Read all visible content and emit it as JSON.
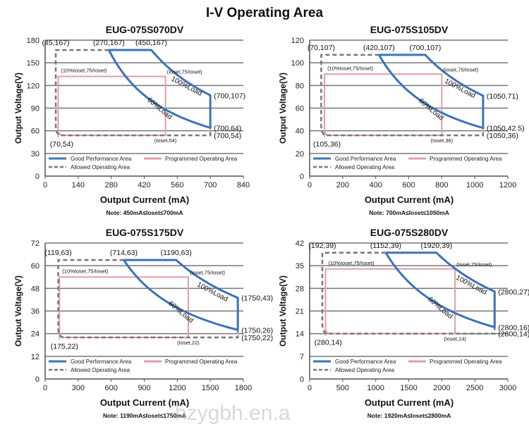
{
  "title": "I-V Operating Area",
  "watermark": "hzygbh.en.a",
  "legend": {
    "good": "Good Performance Area",
    "programmed": "Programmed Operating Area",
    "allowed": "Allowed Operating Area"
  },
  "colors": {
    "good": "#3b73b9",
    "programmed": "#e0a0a4",
    "allowed": "#777777",
    "grid": "#777777"
  },
  "chart_data": [
    {
      "type": "line",
      "title": "EUG-075S070DV",
      "xlabel": "Output Current (mA)",
      "ylabel": "Output Voltage(V)",
      "xlim": [
        0,
        840
      ],
      "ylim": [
        0,
        180
      ],
      "xticks": [
        0,
        140,
        280,
        420,
        560,
        700,
        840
      ],
      "yticks": [
        0,
        30,
        60,
        90,
        120,
        150,
        180
      ],
      "note": "Note:  450mA≤Ioset≤700mA",
      "good": {
        "a": 270,
        "b": 450,
        "vmax": 167,
        "xmax": 700,
        "v100": 107,
        "v60": 64
      },
      "allowed": {
        "x0": 45,
        "x1": 70,
        "vmin": 54,
        "vmax": 167
      },
      "programmed": {
        "x_left": 55,
        "x_right": 510,
        "y_top": 132,
        "y_bottom": 54
      },
      "points": [
        {
          "label": "(45,167)",
          "x": 45,
          "y": 167,
          "pos": "above"
        },
        {
          "label": "(270,167)",
          "x": 270,
          "y": 167,
          "pos": "above"
        },
        {
          "label": "(450,167)",
          "x": 450,
          "y": 167,
          "pos": "above"
        },
        {
          "label": "(700,107)",
          "x": 700,
          "y": 107,
          "pos": "right"
        },
        {
          "label": "(700,64)",
          "x": 700,
          "y": 64,
          "pos": "right"
        },
        {
          "label": "(700,54)",
          "x": 700,
          "y": 54,
          "pos": "right"
        },
        {
          "label": "(70,54)",
          "x": 70,
          "y": 54,
          "pos": "below"
        }
      ],
      "annotations": {
        "prog_top_left": "(10%Ioset,75/Ioset)",
        "prog_top_right": "(Ioset,75/Ioset)",
        "prog_bottom_right": "(Ioset,54)",
        "load60": "60%Load",
        "load100": "100%Load"
      }
    },
    {
      "type": "line",
      "title": "EUG-075S105DV",
      "xlabel": "Output Current (mA)",
      "ylabel": "Output Voltage(V)",
      "xlim": [
        0,
        1200
      ],
      "ylim": [
        0,
        120
      ],
      "xticks": [
        0,
        200,
        400,
        600,
        800,
        1000,
        1200
      ],
      "yticks": [
        0,
        20,
        40,
        60,
        80,
        100,
        120
      ],
      "note": "Note:  700mA≤Ioset≤1050mA",
      "good": {
        "a": 420,
        "b": 700,
        "vmax": 107,
        "xmax": 1050,
        "v100": 71,
        "v60": 42.5
      },
      "allowed": {
        "x0": 70,
        "x1": 105,
        "vmin": 36,
        "vmax": 107
      },
      "programmed": {
        "x_left": 90,
        "x_right": 800,
        "y_top": 90,
        "y_bottom": 36
      },
      "points": [
        {
          "label": "(70,107)",
          "x": 70,
          "y": 107,
          "pos": "above"
        },
        {
          "label": "(420,107)",
          "x": 420,
          "y": 107,
          "pos": "above"
        },
        {
          "label": "(700,107)",
          "x": 700,
          "y": 107,
          "pos": "above"
        },
        {
          "label": "(1050,71)",
          "x": 1050,
          "y": 71,
          "pos": "right"
        },
        {
          "label": "(1050,42.5)",
          "x": 1050,
          "y": 42.5,
          "pos": "right"
        },
        {
          "label": "(1050,36)",
          "x": 1050,
          "y": 36,
          "pos": "right"
        },
        {
          "label": "(105,36)",
          "x": 105,
          "y": 36,
          "pos": "below"
        }
      ],
      "annotations": {
        "prog_top_left": "(10%Ioset,75/Ioset)",
        "prog_top_right": "(Ioset,75/Ioset)",
        "prog_bottom_right": "(Ioset,36)",
        "load60": "60%Load",
        "load100": "100%Load"
      }
    },
    {
      "type": "line",
      "title": "EUG-075S175DV",
      "xlabel": "Output Current (mA)",
      "ylabel": "Output Voltage(V)",
      "xlim": [
        0,
        1800
      ],
      "ylim": [
        0,
        72
      ],
      "xticks": [
        0,
        300,
        600,
        900,
        1200,
        1500,
        1800
      ],
      "yticks": [
        0,
        12,
        24,
        36,
        48,
        60,
        72
      ],
      "note": "Note:  1190mA≤Ioset≤1750mA",
      "good": {
        "a": 714,
        "b": 1190,
        "vmax": 63,
        "xmax": 1750,
        "v100": 43,
        "v60": 26
      },
      "allowed": {
        "x0": 119,
        "x1": 175,
        "vmin": 22,
        "vmax": 63
      },
      "programmed": {
        "x_left": 130,
        "x_right": 1300,
        "y_top": 54,
        "y_bottom": 22
      },
      "points": [
        {
          "label": "(119,63)",
          "x": 119,
          "y": 63,
          "pos": "above"
        },
        {
          "label": "(714,63)",
          "x": 714,
          "y": 63,
          "pos": "above"
        },
        {
          "label": "(1190,63)",
          "x": 1190,
          "y": 63,
          "pos": "above"
        },
        {
          "label": "(1750,43)",
          "x": 1750,
          "y": 43,
          "pos": "right"
        },
        {
          "label": "(1750,26)",
          "x": 1750,
          "y": 26,
          "pos": "right"
        },
        {
          "label": "(1750,22)",
          "x": 1750,
          "y": 22,
          "pos": "right"
        },
        {
          "label": "(175,22)",
          "x": 175,
          "y": 22,
          "pos": "below"
        }
      ],
      "annotations": {
        "prog_top_left": "(10%Ioset,75/Ioset)",
        "prog_top_right": "(Ioset,75/Ioset)",
        "prog_bottom_right": "(Ioset,22)",
        "load60": "60%Load",
        "load100": "100%Load"
      }
    },
    {
      "type": "line",
      "title": "EUG-075S280DV",
      "xlabel": "Output Current (mA)",
      "ylabel": "Output Voltage(V)",
      "xlim": [
        0,
        3000
      ],
      "ylim": [
        0,
        42
      ],
      "xticks": [
        0,
        500,
        1000,
        1500,
        2000,
        2500,
        3000
      ],
      "yticks": [
        0,
        7,
        14,
        21,
        28,
        35,
        42
      ],
      "note": "Note:  1920mA≤Ioset≤2800mA",
      "good": {
        "a": 1152,
        "b": 1920,
        "vmax": 39,
        "xmax": 2800,
        "v100": 27,
        "v60": 16
      },
      "allowed": {
        "x0": 192,
        "x1": 280,
        "vmin": 14,
        "vmax": 39
      },
      "programmed": {
        "x_left": 240,
        "x_right": 2200,
        "y_top": 34,
        "y_bottom": 14
      },
      "points": [
        {
          "label": "(192,39)",
          "x": 192,
          "y": 39,
          "pos": "above"
        },
        {
          "label": "(1152,39)",
          "x": 1152,
          "y": 39,
          "pos": "above"
        },
        {
          "label": "(1920,39)",
          "x": 1920,
          "y": 39,
          "pos": "above"
        },
        {
          "label": "(2800,27)",
          "x": 2800,
          "y": 27,
          "pos": "right"
        },
        {
          "label": "(2800,16)",
          "x": 2800,
          "y": 16,
          "pos": "right"
        },
        {
          "label": "(2800,14)",
          "x": 2800,
          "y": 14,
          "pos": "right"
        },
        {
          "label": "(280,14)",
          "x": 280,
          "y": 14,
          "pos": "below"
        }
      ],
      "annotations": {
        "prog_top_left": "(10%Ioset,75/Ioset)",
        "prog_top_right": "(Ioset,75/Ioset)",
        "prog_bottom_right": "(Ioset,14)",
        "load60": "60%Load",
        "load100": "100%Load"
      }
    }
  ]
}
